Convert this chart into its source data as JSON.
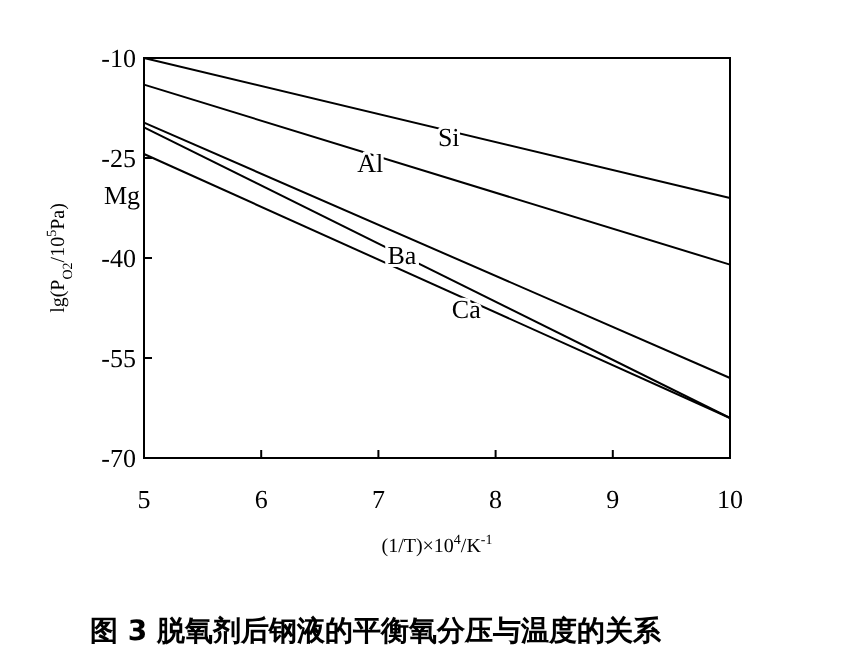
{
  "chart_data": {
    "type": "line",
    "x": [
      5,
      10
    ],
    "series": [
      {
        "color": "#000000",
        "values": [
          -10,
          -31
        ]
      },
      {
        "color": "#000000",
        "values": [
          -14,
          -41
        ]
      },
      {
        "color": "#000000",
        "values": [
          -19.7,
          -58
        ]
      },
      {
        "color": "#000000",
        "values": [
          -20.4,
          -64
        ]
      },
      {
        "color": "#000000",
        "values": [
          -24.4,
          -64
        ]
      }
    ],
    "xlim": [
      5,
      10
    ],
    "ylim": [
      -70,
      -10
    ],
    "xticks": [
      5,
      6,
      7,
      8,
      9,
      10
    ],
    "yticks": [
      -10,
      -25,
      -40,
      -55,
      -70
    ],
    "xlabel": "(1/T)×10$^{4}$/K$^{-1}$",
    "ylabel": "lg(P$_{O2}$/10$^{5}$Pa)",
    "title": "图 3  脱氧剂后钢液的平衡氧分压与温度的关系",
    "annotations": [
      {
        "text": "Si",
        "x": 7.6,
        "y": -21.9
      },
      {
        "text": "Al",
        "x": 6.93,
        "y": -25.7
      },
      "Mg",
      {
        "text": "Ba",
        "x": 7.2,
        "y": -39.5
      },
      {
        "text": "Ca",
        "x": 7.75,
        "y": -47.7
      }
    ],
    "grid": false,
    "marker": "none",
    "line_style": "solid"
  }
}
